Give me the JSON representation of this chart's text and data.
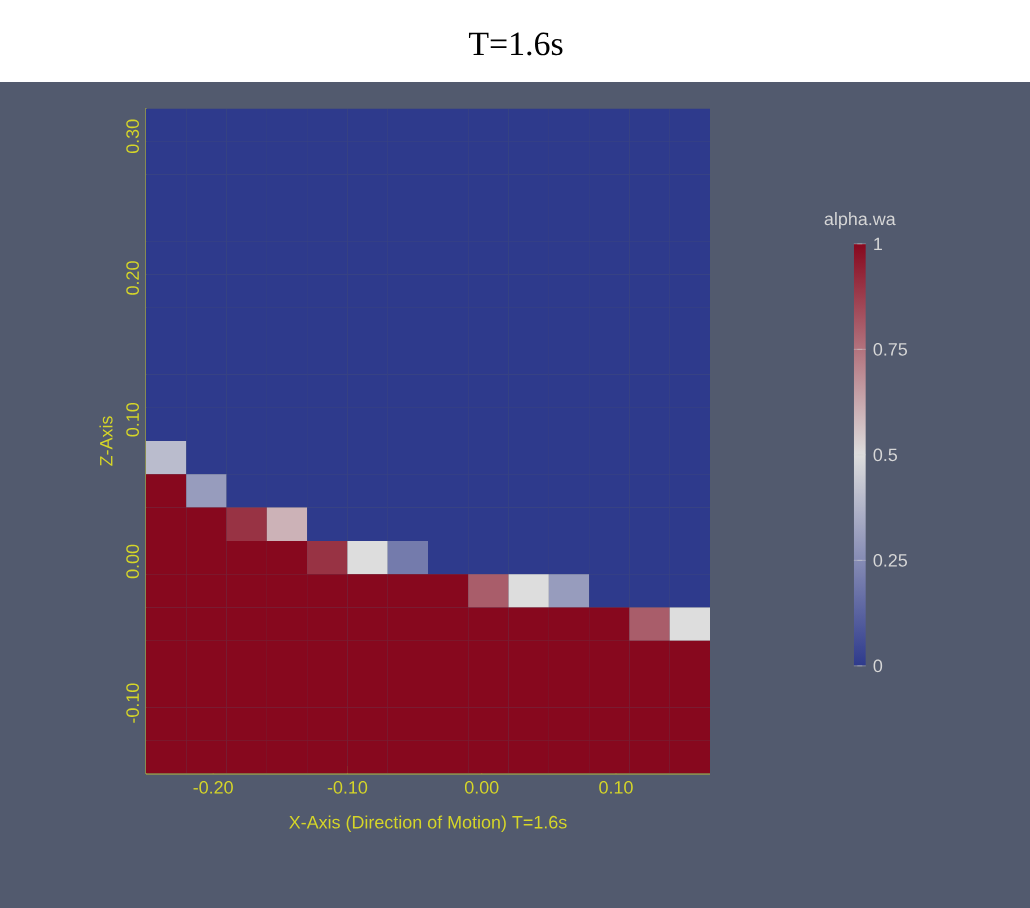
{
  "chart_data": {
    "type": "heatmap",
    "title": "T=1.6s",
    "xlabel": "X-Axis (Direction of Motion) T=1.6s",
    "ylabel": "Z-Axis",
    "clabel": "alpha.wa",
    "x": [
      -0.235,
      -0.205,
      -0.175,
      -0.145,
      -0.115,
      -0.085,
      -0.055,
      -0.025,
      0.005,
      0.035,
      0.065,
      0.095,
      0.125,
      0.155
    ],
    "y": [
      0.308,
      0.285,
      0.261,
      0.238,
      0.214,
      0.191,
      0.167,
      0.144,
      0.12,
      0.097,
      0.073,
      0.05,
      0.026,
      0.003,
      -0.021,
      -0.044,
      -0.068,
      -0.091,
      -0.115,
      -0.138
    ],
    "cells": [
      [
        0,
        0,
        0,
        0,
        0,
        0,
        0,
        0,
        0,
        0,
        0,
        0,
        0,
        0
      ],
      [
        0,
        0,
        0,
        0,
        0,
        0,
        0,
        0,
        0,
        0,
        0,
        0,
        0,
        0
      ],
      [
        0,
        0,
        0,
        0,
        0,
        0,
        0,
        0,
        0,
        0,
        0,
        0,
        0,
        0
      ],
      [
        0,
        0,
        0,
        0,
        0,
        0,
        0,
        0,
        0,
        0,
        0,
        0,
        0,
        0
      ],
      [
        0,
        0,
        0,
        0,
        0,
        0,
        0,
        0,
        0,
        0,
        0,
        0,
        0,
        0
      ],
      [
        0,
        0,
        0,
        0,
        0,
        0,
        0,
        0,
        0,
        0,
        0,
        0,
        0,
        0
      ],
      [
        0,
        0,
        0,
        0,
        0,
        0,
        0,
        0,
        0,
        0,
        0,
        0,
        0,
        0
      ],
      [
        0,
        0,
        0,
        0,
        0,
        0,
        0,
        0,
        0,
        0,
        0,
        0,
        0,
        0
      ],
      [
        0,
        0,
        0,
        0,
        0,
        0,
        0,
        0,
        0,
        0,
        0,
        0,
        0,
        0
      ],
      [
        0,
        0,
        0,
        0,
        0,
        0,
        0,
        0,
        0,
        0,
        0,
        0,
        0,
        0
      ],
      [
        0.4,
        0,
        0,
        0,
        0,
        0,
        0,
        0,
        0,
        0,
        0,
        0,
        0,
        0
      ],
      [
        1,
        0.3,
        0,
        0,
        0,
        0,
        0,
        0,
        0,
        0,
        0,
        0,
        0,
        0
      ],
      [
        1,
        1,
        0.9,
        0.6,
        0,
        0,
        0,
        0,
        0,
        0,
        0,
        0,
        0,
        0
      ],
      [
        1,
        1,
        1,
        1,
        0.9,
        0.5,
        0.2,
        0,
        0,
        0,
        0,
        0,
        0,
        0
      ],
      [
        1,
        1,
        1,
        1,
        1,
        1,
        1,
        1,
        0.8,
        0.5,
        0.3,
        0,
        0,
        0
      ],
      [
        1,
        1,
        1,
        1,
        1,
        1,
        1,
        1,
        1,
        1,
        1,
        1,
        0.8,
        0.5
      ],
      [
        1,
        1,
        1,
        1,
        1,
        1,
        1,
        1,
        1,
        1,
        1,
        1,
        1,
        1
      ],
      [
        1,
        1,
        1,
        1,
        1,
        1,
        1,
        1,
        1,
        1,
        1,
        1,
        1,
        1
      ],
      [
        1,
        1,
        1,
        1,
        1,
        1,
        1,
        1,
        1,
        1,
        1,
        1,
        1,
        1
      ],
      [
        1,
        1,
        1,
        1,
        1,
        1,
        1,
        1,
        1,
        1,
        1,
        1,
        1,
        1
      ]
    ],
    "xlim": [
      -0.25,
      0.17
    ],
    "ylim": [
      -0.15,
      0.32
    ],
    "xticks": [
      {
        "value": -0.2,
        "label": "-0.20"
      },
      {
        "value": -0.1,
        "label": "-0.10"
      },
      {
        "value": 0,
        "label": "0.00"
      },
      {
        "value": 0.1,
        "label": "0.10"
      }
    ],
    "yticks": [
      {
        "value": -0.1,
        "label": "-0.10"
      },
      {
        "value": 0,
        "label": "0.00"
      },
      {
        "value": 0.1,
        "label": "0.10"
      },
      {
        "value": 0.2,
        "label": "0.20"
      },
      {
        "value": 0.3,
        "label": "0.30"
      }
    ],
    "clim": [
      0,
      1
    ],
    "cticks": [
      0,
      0.25,
      0.5,
      0.75,
      1
    ]
  }
}
